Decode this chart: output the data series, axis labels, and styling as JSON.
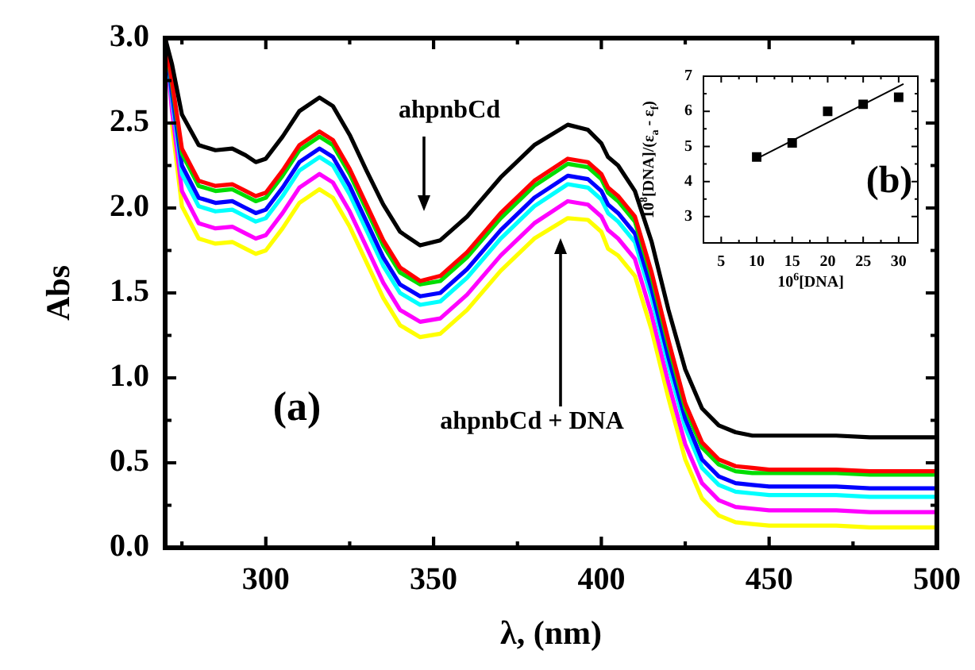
{
  "chart_data": [
    {
      "type": "line",
      "xlabel": "λ, (nm)",
      "ylabel": "Abs",
      "marker": "none",
      "grid": false,
      "x": [
        270,
        272,
        275,
        280,
        285,
        290,
        294,
        297,
        300,
        305,
        310,
        316,
        320,
        325,
        330,
        335,
        340,
        346,
        352,
        360,
        370,
        380,
        390,
        396,
        400,
        402,
        405,
        410,
        415,
        420,
        425,
        430,
        435,
        440,
        445,
        450,
        460,
        470,
        480,
        490,
        500
      ],
      "xlim": [
        270,
        500
      ],
      "ylim": [
        0,
        3.0
      ],
      "xticks": [
        {
          "value": 275,
          "label": null
        },
        300,
        {
          "value": 325,
          "label": null
        },
        350,
        {
          "value": 375,
          "label": null
        },
        400,
        {
          "value": 425,
          "label": null
        },
        450,
        {
          "value": 475,
          "label": null
        },
        500
      ],
      "yticks": [
        {
          "value": 0,
          "label": "0.0"
        },
        {
          "value": 0.25,
          "label": null
        },
        {
          "value": 0.5,
          "label": "0.5"
        },
        {
          "value": 0.75,
          "label": null
        },
        {
          "value": 1,
          "label": "1.0"
        },
        {
          "value": 1.25,
          "label": null
        },
        {
          "value": 1.5,
          "label": "1.5"
        },
        {
          "value": 1.75,
          "label": null
        },
        {
          "value": 2,
          "label": "2.0"
        },
        {
          "value": 2.25,
          "label": null
        },
        {
          "value": 2.5,
          "label": "2.5"
        },
        {
          "value": 2.75,
          "label": null
        },
        {
          "value": 3,
          "label": "3.0"
        }
      ],
      "series": [
        {
          "color": "#000000",
          "values": [
            3.0,
            2.85,
            2.55,
            2.37,
            2.34,
            2.35,
            2.31,
            2.27,
            2.29,
            2.42,
            2.57,
            2.65,
            2.6,
            2.43,
            2.22,
            2.02,
            1.86,
            1.78,
            1.81,
            1.95,
            2.18,
            2.37,
            2.49,
            2.46,
            2.38,
            2.3,
            2.25,
            2.1,
            1.8,
            1.4,
            1.05,
            0.82,
            0.72,
            0.68,
            0.66,
            0.66,
            0.66,
            0.66,
            0.65,
            0.65,
            0.65
          ]
        },
        {
          "color": "#ff0000",
          "values": [
            3.0,
            2.75,
            2.35,
            2.16,
            2.13,
            2.14,
            2.1,
            2.07,
            2.09,
            2.22,
            2.37,
            2.45,
            2.4,
            2.23,
            2.02,
            1.81,
            1.65,
            1.57,
            1.6,
            1.74,
            1.97,
            2.16,
            2.29,
            2.27,
            2.2,
            2.12,
            2.07,
            1.95,
            1.62,
            1.22,
            0.85,
            0.62,
            0.52,
            0.48,
            0.47,
            0.46,
            0.46,
            0.46,
            0.45,
            0.45,
            0.45
          ]
        },
        {
          "color": "#00dd00",
          "values": [
            3.0,
            2.73,
            2.32,
            2.13,
            2.1,
            2.11,
            2.07,
            2.04,
            2.06,
            2.19,
            2.34,
            2.42,
            2.37,
            2.2,
            1.99,
            1.78,
            1.62,
            1.55,
            1.57,
            1.71,
            1.94,
            2.13,
            2.26,
            2.24,
            2.17,
            2.09,
            2.04,
            1.92,
            1.59,
            1.19,
            0.82,
            0.59,
            0.49,
            0.45,
            0.44,
            0.44,
            0.44,
            0.44,
            0.43,
            0.43,
            0.43
          ]
        },
        {
          "color": "#0000ff",
          "values": [
            3.0,
            2.68,
            2.25,
            2.06,
            2.03,
            2.04,
            2.0,
            1.97,
            1.99,
            2.12,
            2.27,
            2.35,
            2.3,
            2.13,
            1.92,
            1.71,
            1.55,
            1.48,
            1.5,
            1.64,
            1.87,
            2.06,
            2.19,
            2.17,
            2.1,
            2.02,
            1.97,
            1.85,
            1.52,
            1.12,
            0.76,
            0.52,
            0.42,
            0.38,
            0.37,
            0.36,
            0.36,
            0.36,
            0.35,
            0.35,
            0.35
          ]
        },
        {
          "color": "#00ffff",
          "values": [
            3.0,
            2.65,
            2.2,
            2.01,
            1.98,
            1.99,
            1.95,
            1.92,
            1.94,
            2.07,
            2.22,
            2.3,
            2.25,
            2.08,
            1.87,
            1.66,
            1.5,
            1.43,
            1.45,
            1.59,
            1.82,
            2.01,
            2.14,
            2.12,
            2.05,
            1.97,
            1.92,
            1.8,
            1.47,
            1.07,
            0.71,
            0.47,
            0.37,
            0.33,
            0.32,
            0.31,
            0.31,
            0.31,
            0.3,
            0.3,
            0.3
          ]
        },
        {
          "color": "#ff00ff",
          "values": [
            3.0,
            2.58,
            2.1,
            1.91,
            1.88,
            1.89,
            1.85,
            1.82,
            1.84,
            1.97,
            2.12,
            2.2,
            2.15,
            1.98,
            1.77,
            1.56,
            1.4,
            1.33,
            1.35,
            1.49,
            1.72,
            1.91,
            2.04,
            2.02,
            1.95,
            1.87,
            1.82,
            1.7,
            1.37,
            0.97,
            0.61,
            0.38,
            0.28,
            0.24,
            0.23,
            0.22,
            0.22,
            0.22,
            0.21,
            0.21,
            0.21
          ]
        },
        {
          "color": "#ffff00",
          "values": [
            null,
            2.5,
            2.01,
            1.82,
            1.79,
            1.8,
            1.76,
            1.73,
            1.75,
            1.88,
            2.03,
            2.11,
            2.06,
            1.89,
            1.68,
            1.47,
            1.31,
            1.24,
            1.26,
            1.4,
            1.63,
            1.82,
            1.94,
            1.93,
            1.86,
            1.76,
            1.72,
            1.6,
            1.28,
            0.88,
            0.52,
            0.29,
            0.19,
            0.15,
            0.14,
            0.13,
            0.13,
            0.13,
            0.12,
            0.12,
            0.12
          ]
        }
      ],
      "annotations": [
        "ahpnbCd",
        "ahpnbCd + DNA",
        "(a)"
      ]
    },
    {
      "type": "scatter",
      "xlabel": "10$^{6}$[DNA]",
      "ylabel": "10$^{8}$[DNA]/(ε$_{a}$ - ε$_{f}$)",
      "marker": "square",
      "grid": false,
      "xlim": [
        2.5,
        32.7
      ],
      "ylim": [
        2.25,
        7
      ],
      "xticks": [
        5,
        {
          "value": 7.5,
          "label": null
        },
        10,
        {
          "value": 12.5,
          "label": null
        },
        15,
        {
          "value": 17.5,
          "label": null
        },
        20,
        {
          "value": 22.5,
          "label": null
        },
        25,
        {
          "value": 27.5,
          "label": null
        },
        30
      ],
      "yticks": [
        3,
        {
          "value": 3.5,
          "label": null
        },
        4,
        {
          "value": 4.5,
          "label": null
        },
        5,
        {
          "value": 5.5,
          "label": null
        },
        6,
        {
          "value": 6.5,
          "label": null
        },
        7
      ],
      "series": [
        {
          "color": "#000000",
          "x": [
            10,
            15,
            20,
            25,
            30
          ],
          "values": [
            4.7,
            5.1,
            6.0,
            6.2,
            6.4
          ]
        },
        {
          "type": "line",
          "marker": "none",
          "color": "#000000",
          "x": [
            10,
            30.6
          ],
          "values": [
            4.65,
            6.77
          ]
        }
      ],
      "annotations": [
        "(b)"
      ]
    }
  ]
}
